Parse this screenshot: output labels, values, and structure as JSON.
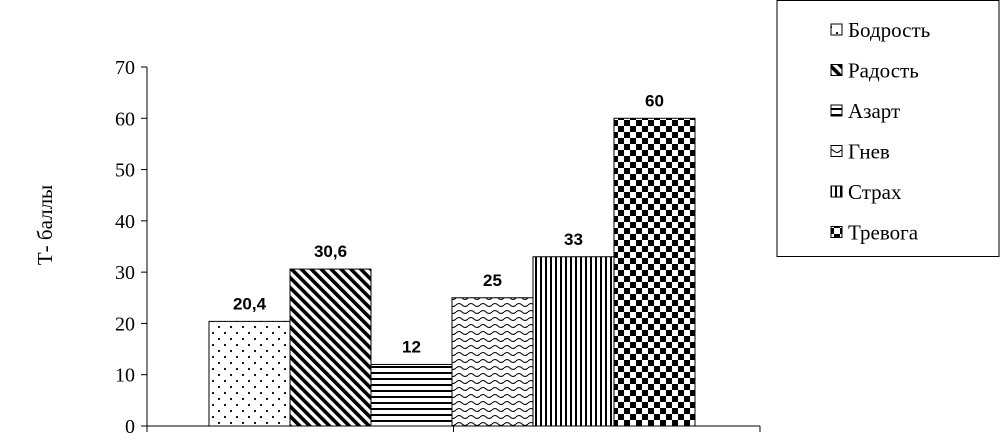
{
  "chart_data": {
    "type": "bar",
    "title": "",
    "xlabel": "",
    "ylabel": "Т- баллы",
    "ylim": [
      0,
      70
    ],
    "yticks": [
      0,
      10,
      20,
      30,
      40,
      50,
      60,
      70
    ],
    "grid": false,
    "legend_position": "top-right",
    "series": [
      {
        "name": "Бодрость",
        "value": 20.4,
        "label": "20,4",
        "pattern": "dots"
      },
      {
        "name": "Радость",
        "value": 30.6,
        "label": "30,6",
        "pattern": "diagonal-bold"
      },
      {
        "name": "Азарт",
        "value": 12,
        "label": "12",
        "pattern": "horizontal"
      },
      {
        "name": "Гнев",
        "value": 25,
        "label": "25",
        "pattern": "waves"
      },
      {
        "name": "Страх",
        "value": 33,
        "label": "33",
        "pattern": "vertical"
      },
      {
        "name": "Тревога",
        "value": 60,
        "label": "60",
        "pattern": "checker"
      }
    ]
  }
}
